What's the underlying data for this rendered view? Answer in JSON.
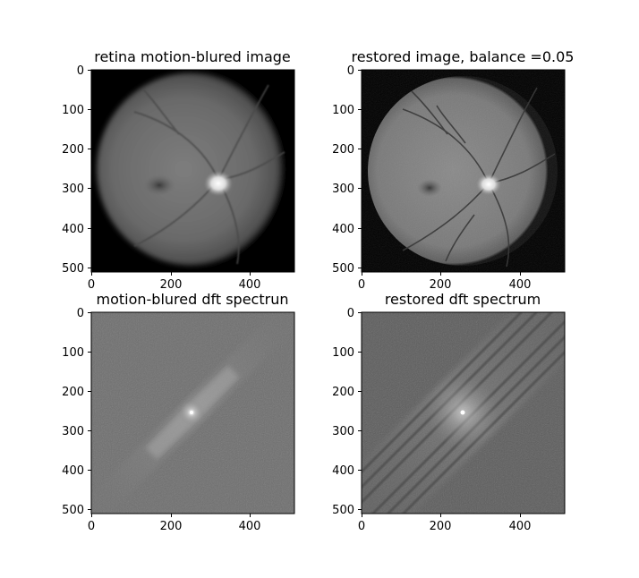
{
  "figure": {
    "panels": [
      {
        "title": "retina motion-blured image",
        "image": "motion-blurred retina fundus photograph (grayscale)",
        "y_ticks": [
          "0",
          "100",
          "200",
          "300",
          "400",
          "500"
        ],
        "x_ticks": [
          "0",
          "200",
          "400"
        ]
      },
      {
        "title": "restored image, balance =0.05",
        "image": "restored retina fundus photograph (grayscale)",
        "y_ticks": [
          "0",
          "100",
          "200",
          "300",
          "400",
          "500"
        ],
        "x_ticks": [
          "0",
          "200",
          "400"
        ]
      },
      {
        "title": "motion-blured dft spectrun",
        "image": "DFT magnitude spectrum of blurred image",
        "y_ticks": [
          "0",
          "100",
          "200",
          "300",
          "400",
          "500"
        ],
        "x_ticks": [
          "0",
          "200",
          "400"
        ]
      },
      {
        "title": "restored dft spectrum",
        "image": "DFT magnitude spectrum of restored image",
        "y_ticks": [
          "0",
          "100",
          "200",
          "300",
          "400",
          "500"
        ],
        "x_ticks": [
          "0",
          "200",
          "400"
        ]
      }
    ]
  }
}
